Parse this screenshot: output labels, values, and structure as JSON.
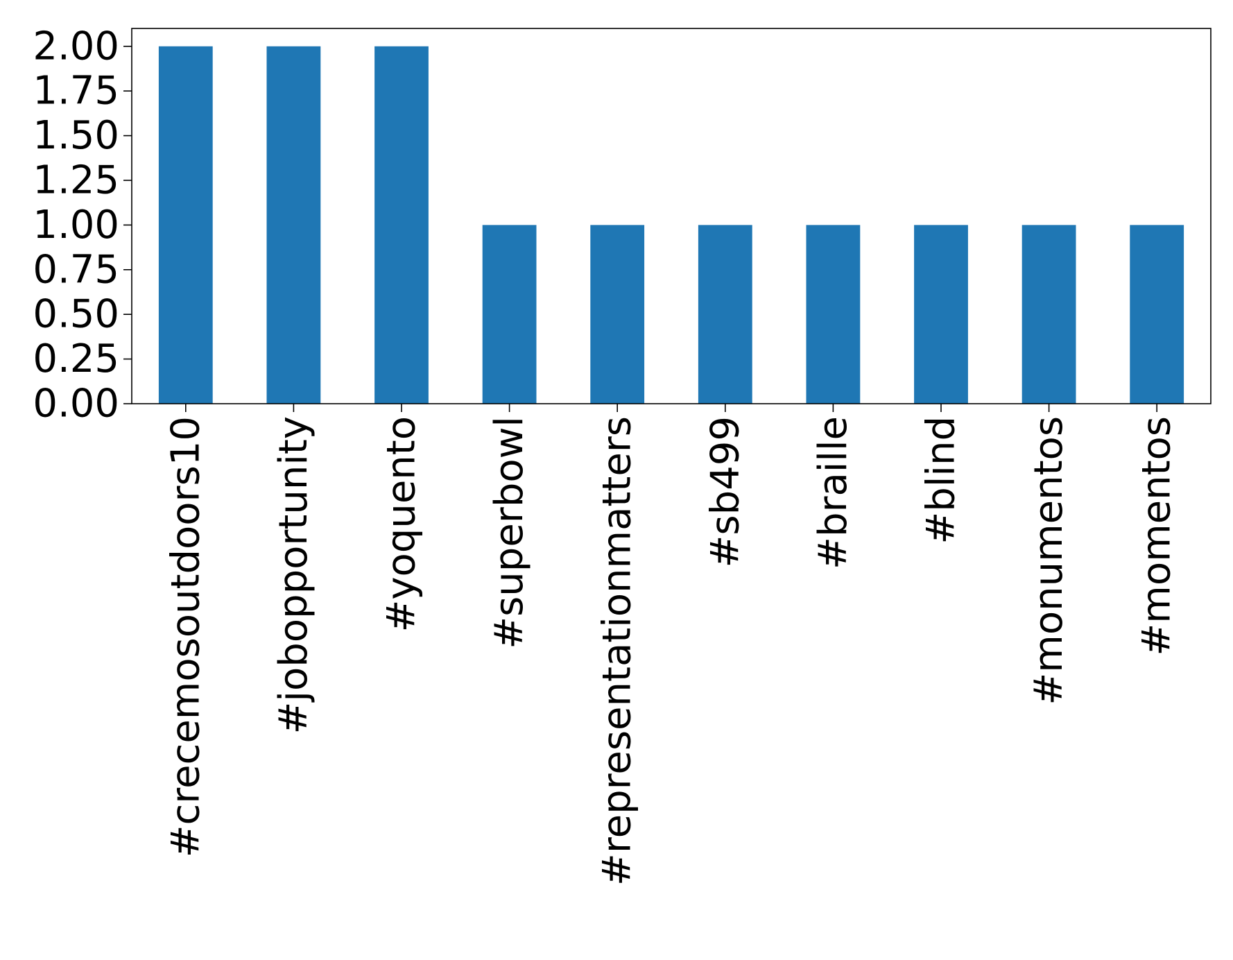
{
  "chart_data": {
    "type": "bar",
    "title": "",
    "xlabel": "",
    "ylabel": "",
    "categories": [
      "#crecemosoutdoors10",
      "#jobopportunity",
      "#yoquento",
      "#superbowl",
      "#representationmatters",
      "#sb499",
      "#braille",
      "#blind",
      "#monumentos",
      "#momentos"
    ],
    "values": [
      2,
      2,
      2,
      1,
      1,
      1,
      1,
      1,
      1,
      1
    ],
    "ylim": [
      0,
      2.1
    ],
    "yticks": [
      0,
      0.25,
      0.5,
      0.75,
      1.0,
      1.25,
      1.5,
      1.75,
      2.0
    ],
    "ytick_labels": [
      "0.00",
      "0.25",
      "0.50",
      "0.75",
      "1.00",
      "1.25",
      "1.50",
      "1.75",
      "2.00"
    ],
    "xtick_rotation": "vertical",
    "grid": false,
    "legend": "none",
    "bar_color": "#1f77b4"
  }
}
